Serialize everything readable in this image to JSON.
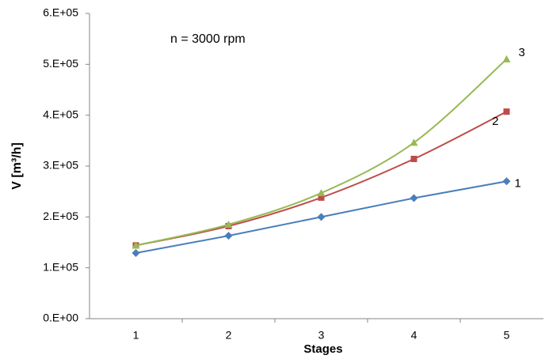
{
  "chart_data": {
    "type": "line",
    "annotation": "n = 3000 rpm",
    "x_label": "Stages",
    "y_label": "V [m³/h]",
    "categories": [
      "1",
      "2",
      "3",
      "4",
      "5"
    ],
    "ylim": [
      0,
      600000
    ],
    "yticks": [
      {
        "value": 0,
        "label": "0.E+00"
      },
      {
        "value": 100000,
        "label": "1.E+05"
      },
      {
        "value": 200000,
        "label": "2.E+05"
      },
      {
        "value": 300000,
        "label": "3.E+05"
      },
      {
        "value": 400000,
        "label": "4.E+05"
      },
      {
        "value": 500000,
        "label": "5.E+05"
      },
      {
        "value": 600000,
        "label": "6.E+05"
      }
    ],
    "grid": false,
    "series": [
      {
        "name": "1",
        "color": "#4a7ebb",
        "marker": "diamond",
        "smooth": false,
        "values": [
          129000,
          163000,
          200000,
          237000,
          270000
        ]
      },
      {
        "name": "2",
        "color": "#be4b48",
        "marker": "square",
        "smooth": true,
        "values": [
          144000,
          182000,
          238000,
          314000,
          407000
        ]
      },
      {
        "name": "3",
        "color": "#98b954",
        "marker": "triangle",
        "smooth": true,
        "values": [
          144000,
          185000,
          247000,
          346000,
          510000
        ]
      }
    ]
  }
}
